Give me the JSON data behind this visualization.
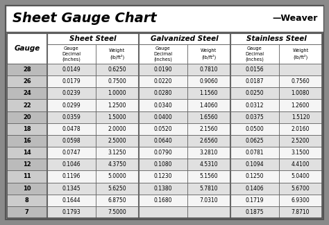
{
  "title": "Sheet Gauge Chart",
  "bg_outer": "#8a8a8a",
  "bg_inner": "#ffffff",
  "row_bg_alt": "#e0e0e0",
  "row_bg_norm": "#f5f5f5",
  "gauge_bg_alt": "#bbbbbb",
  "gauge_bg_norm": "#cccccc",
  "header_bg": "#ffffff",
  "border_color": "#555555",
  "divider_color": "#666666",
  "gauges": [
    28,
    26,
    24,
    22,
    20,
    18,
    16,
    14,
    12,
    11,
    10,
    8,
    7
  ],
  "sheet_steel": [
    [
      "0.0149",
      "0.6250"
    ],
    [
      "0.0179",
      "0.7500"
    ],
    [
      "0.0239",
      "1.0000"
    ],
    [
      "0.0299",
      "1.2500"
    ],
    [
      "0.0359",
      "1.5000"
    ],
    [
      "0.0478",
      "2.0000"
    ],
    [
      "0.0598",
      "2.5000"
    ],
    [
      "0.0747",
      "3.1250"
    ],
    [
      "0.1046",
      "4.3750"
    ],
    [
      "0.1196",
      "5.0000"
    ],
    [
      "0.1345",
      "5.6250"
    ],
    [
      "0.1644",
      "6.8750"
    ],
    [
      "0.1793",
      "7.5000"
    ]
  ],
  "galvanized_steel": [
    [
      "0.0190",
      "0.7810"
    ],
    [
      "0.0220",
      "0.9060"
    ],
    [
      "0.0280",
      "1.1560"
    ],
    [
      "0.0340",
      "1.4060"
    ],
    [
      "0.0400",
      "1.6560"
    ],
    [
      "0.0520",
      "2.1560"
    ],
    [
      "0.0640",
      "2.6560"
    ],
    [
      "0.0790",
      "3.2810"
    ],
    [
      "0.1080",
      "4.5310"
    ],
    [
      "0.1230",
      "5.1560"
    ],
    [
      "0.1380",
      "5.7810"
    ],
    [
      "0.1680",
      "7.0310"
    ],
    [
      "",
      ""
    ]
  ],
  "stainless_steel": [
    [
      "0.0156",
      ""
    ],
    [
      "0.0187",
      "0.7560"
    ],
    [
      "0.0250",
      "1.0080"
    ],
    [
      "0.0312",
      "1.2600"
    ],
    [
      "0.0375",
      "1.5120"
    ],
    [
      "0.0500",
      "2.0160"
    ],
    [
      "0.0625",
      "2.5200"
    ],
    [
      "0.0781",
      "3.1500"
    ],
    [
      "0.1094",
      "4.4100"
    ],
    [
      "0.1250",
      "5.0400"
    ],
    [
      "0.1406",
      "5.6700"
    ],
    [
      "0.1719",
      "6.9300"
    ],
    [
      "0.1875",
      "7.8710"
    ]
  ]
}
